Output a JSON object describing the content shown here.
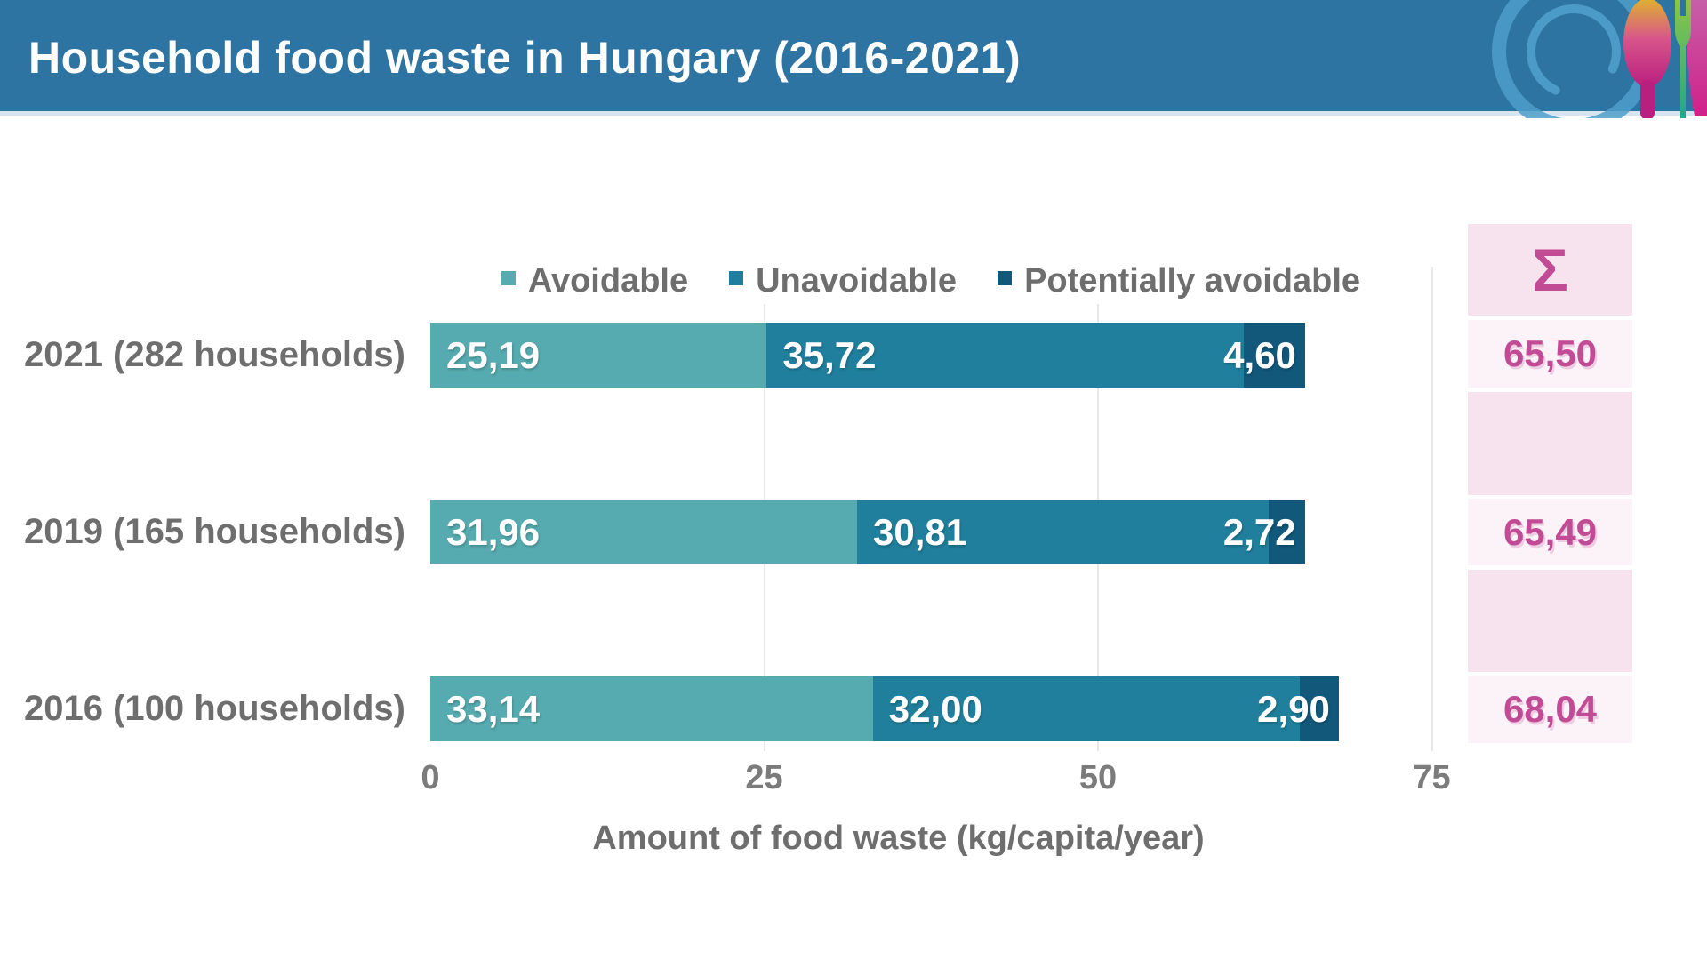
{
  "header": {
    "title": "Household food waste in Hungary (2016-2021)",
    "background_color": "#2d74a3",
    "logo": "plate-with-spoon-and-fork"
  },
  "legend": {
    "items": [
      {
        "label": "Avoidable",
        "color": "#55abaf"
      },
      {
        "label": "Unavoidable",
        "color": "#1f7f9c"
      },
      {
        "label": "Potentially avoidable",
        "color": "#11587a"
      }
    ]
  },
  "chart_data": {
    "type": "bar",
    "orientation": "horizontal",
    "title": "Household food waste in Hungary (2016-2021)",
    "categories": [
      "2021 (282 households)",
      "2019 (165 households)",
      "2016 (100 households)"
    ],
    "series": [
      {
        "name": "Avoidable",
        "color": "#55abaf",
        "values": [
          25.19,
          31.96,
          33.14
        ],
        "labels": [
          "25,19",
          "31,96",
          "33,14"
        ]
      },
      {
        "name": "Unavoidable",
        "color": "#1f7f9c",
        "values": [
          35.72,
          30.81,
          32.0
        ],
        "labels": [
          "35,72",
          "30,81",
          "32,00"
        ]
      },
      {
        "name": "Potentially avoidable",
        "color": "#11587a",
        "values": [
          4.6,
          2.72,
          2.9
        ],
        "labels": [
          "4,60",
          "2,72",
          "2,90"
        ]
      }
    ],
    "totals": [
      "65,50",
      "65,49",
      "68,04"
    ],
    "sum_symbol": "Σ",
    "xlabel": "Amount of food waste (kg/capita/year)",
    "x_ticks": [
      {
        "label": "0",
        "value": 0
      },
      {
        "label": "25",
        "value": 25
      },
      {
        "label": "50",
        "value": 50
      },
      {
        "label": "75",
        "value": 75
      }
    ],
    "xlim": [
      0,
      75
    ],
    "grid": "vertical-light",
    "legend_position": "top-center",
    "label_color": "#6e6e6e",
    "total_color": "#c14b94",
    "sum_bg_dark": "#f7e3ee",
    "sum_bg_light": "#fcf3f8"
  }
}
